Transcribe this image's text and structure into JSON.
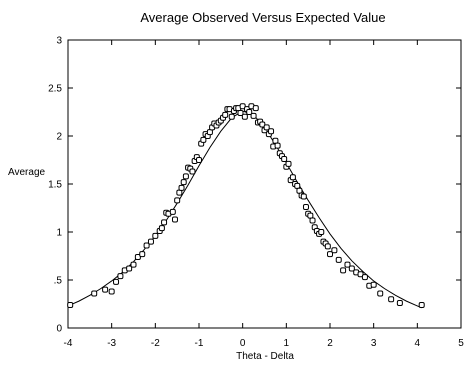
{
  "chart_data": {
    "type": "scatter",
    "title": "Average Observed Versus Expected Value",
    "xlabel": "Theta - Delta",
    "ylabel": "Average",
    "xlim": [
      -4,
      5
    ],
    "ylim": [
      0,
      3
    ],
    "x_ticks": [
      -4,
      -3,
      -2,
      -1,
      0,
      1,
      2,
      3,
      4,
      5
    ],
    "x_tick_labels": [
      "-4",
      "-3",
      "-2",
      "-1",
      "0",
      "1",
      "2",
      "3",
      "4",
      "5"
    ],
    "y_ticks": [
      0,
      0.5,
      1,
      1.5,
      2,
      2.5,
      3
    ],
    "y_tick_labels": [
      "0",
      ".5",
      "1",
      "1.5",
      "2",
      "2.5",
      "3"
    ],
    "grid": false,
    "legend": "none",
    "colors": {
      "marks": "#000000",
      "background": "#ffffff"
    },
    "curve_type": "expected-value curve",
    "expected_curve": {
      "x": [
        -4.0,
        -3.75,
        -3.5,
        -3.25,
        -3.0,
        -2.75,
        -2.5,
        -2.25,
        -2.0,
        -1.75,
        -1.5,
        -1.25,
        -1.0,
        -0.75,
        -0.5,
        -0.25,
        0.0,
        0.25,
        0.5,
        0.75,
        1.0,
        1.25,
        1.5,
        1.75,
        2.0,
        2.25,
        2.5,
        2.75,
        3.0,
        3.25,
        3.5,
        3.75,
        4.0,
        4.1
      ],
      "y": [
        0.23,
        0.28,
        0.34,
        0.41,
        0.49,
        0.58,
        0.69,
        0.82,
        0.96,
        1.12,
        1.3,
        1.49,
        1.69,
        1.88,
        2.05,
        2.19,
        2.26,
        2.22,
        2.09,
        1.91,
        1.72,
        1.52,
        1.33,
        1.15,
        0.98,
        0.83,
        0.7,
        0.59,
        0.49,
        0.41,
        0.34,
        0.28,
        0.23,
        0.21
      ]
    },
    "observed_points": {
      "x": [
        -3.95,
        -3.4,
        -3.15,
        -3.0,
        -2.9,
        -2.8,
        -2.7,
        -2.6,
        -2.5,
        -2.4,
        -2.3,
        -2.2,
        -2.1,
        -2.0,
        -1.9,
        -1.85,
        -1.8,
        -1.75,
        -1.7,
        -1.6,
        -1.55,
        -1.5,
        -1.45,
        -1.4,
        -1.35,
        -1.3,
        -1.25,
        -1.2,
        -1.15,
        -1.1,
        -1.05,
        -1.0,
        -0.95,
        -0.9,
        -0.85,
        -0.8,
        -0.75,
        -0.7,
        -0.65,
        -0.6,
        -0.55,
        -0.5,
        -0.45,
        -0.4,
        -0.35,
        -0.3,
        -0.25,
        -0.2,
        -0.15,
        -0.1,
        -0.05,
        0.0,
        0.05,
        0.1,
        0.15,
        0.2,
        0.25,
        0.3,
        0.35,
        0.4,
        0.45,
        0.5,
        0.55,
        0.6,
        0.65,
        0.7,
        0.75,
        0.8,
        0.85,
        0.9,
        0.95,
        1.0,
        1.05,
        1.1,
        1.15,
        1.2,
        1.25,
        1.3,
        1.35,
        1.4,
        1.45,
        1.5,
        1.55,
        1.6,
        1.65,
        1.7,
        1.75,
        1.8,
        1.85,
        1.9,
        1.95,
        2.0,
        2.1,
        2.2,
        2.3,
        2.4,
        2.5,
        2.6,
        2.7,
        2.8,
        2.9,
        3.0,
        3.15,
        3.4,
        3.6,
        4.1
      ],
      "y": [
        0.24,
        0.36,
        0.4,
        0.38,
        0.48,
        0.54,
        0.6,
        0.62,
        0.66,
        0.74,
        0.77,
        0.86,
        0.9,
        0.96,
        1.01,
        1.04,
        1.1,
        1.2,
        1.19,
        1.21,
        1.13,
        1.33,
        1.41,
        1.46,
        1.52,
        1.58,
        1.67,
        1.66,
        1.63,
        1.74,
        1.78,
        1.75,
        1.92,
        1.96,
        2.02,
        2.0,
        2.04,
        2.09,
        2.13,
        2.11,
        2.14,
        2.16,
        2.19,
        2.22,
        2.28,
        2.28,
        2.2,
        2.26,
        2.29,
        2.29,
        2.24,
        2.31,
        2.2,
        2.28,
        2.25,
        2.31,
        2.21,
        2.29,
        2.14,
        2.15,
        2.12,
        2.06,
        2.09,
        2.02,
        2.05,
        1.89,
        1.95,
        1.9,
        1.82,
        1.79,
        1.76,
        1.68,
        1.71,
        1.54,
        1.57,
        1.5,
        1.48,
        1.43,
        1.38,
        1.37,
        1.26,
        1.19,
        1.17,
        1.12,
        1.05,
        1.01,
        0.98,
        1.0,
        0.9,
        0.88,
        0.85,
        0.77,
        0.81,
        0.71,
        0.6,
        0.66,
        0.62,
        0.58,
        0.56,
        0.53,
        0.44,
        0.45,
        0.36,
        0.3,
        0.26,
        0.24
      ]
    }
  }
}
